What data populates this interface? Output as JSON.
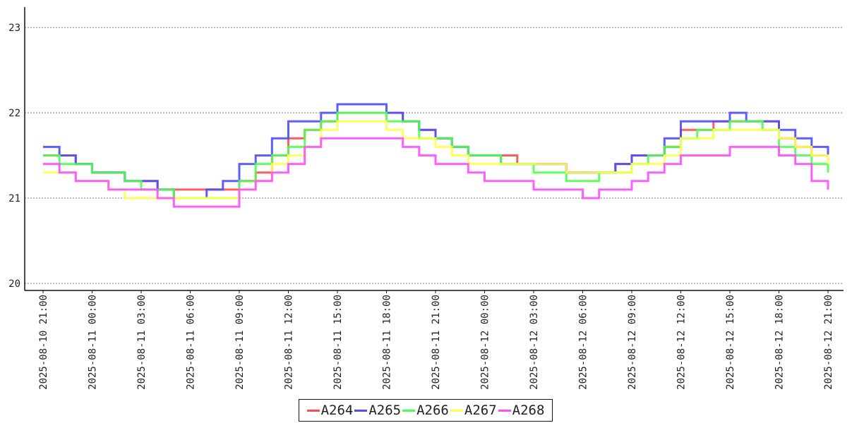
{
  "chart_data": {
    "type": "line",
    "title": "",
    "xlabel": "",
    "ylabel": "",
    "ylim": [
      19.9,
      23.25
    ],
    "yticks": [
      "20",
      "21",
      "22",
      "23"
    ],
    "ytick_values": [
      20,
      21,
      22,
      23
    ],
    "xticks": [
      "2025-08-10 21:00",
      "2025-08-11 00:00",
      "2025-08-11 03:00",
      "2025-08-11 06:00",
      "2025-08-11 09:00",
      "2025-08-11 12:00",
      "2025-08-11 15:00",
      "2025-08-11 18:00",
      "2025-08-11 21:00",
      "2025-08-12 00:00",
      "2025-08-12 03:00",
      "2025-08-12 06:00",
      "2025-08-12 09:00",
      "2025-08-12 12:00",
      "2025-08-12 15:00",
      "2025-08-12 18:00",
      "2025-08-12 21:00"
    ],
    "grid": "horizontal dotted",
    "legend_position": "bottom-center",
    "x": [
      "2025-08-10 21:00",
      "2025-08-10 22:00",
      "2025-08-10 23:00",
      "2025-08-11 00:00",
      "2025-08-11 01:00",
      "2025-08-11 02:00",
      "2025-08-11 03:00",
      "2025-08-11 04:00",
      "2025-08-11 05:00",
      "2025-08-11 06:00",
      "2025-08-11 07:00",
      "2025-08-11 08:00",
      "2025-08-11 09:00",
      "2025-08-11 10:00",
      "2025-08-11 11:00",
      "2025-08-11 12:00",
      "2025-08-11 13:00",
      "2025-08-11 14:00",
      "2025-08-11 15:00",
      "2025-08-11 16:00",
      "2025-08-11 17:00",
      "2025-08-11 18:00",
      "2025-08-11 19:00",
      "2025-08-11 20:00",
      "2025-08-11 21:00",
      "2025-08-11 22:00",
      "2025-08-11 23:00",
      "2025-08-12 00:00",
      "2025-08-12 01:00",
      "2025-08-12 02:00",
      "2025-08-12 03:00",
      "2025-08-12 04:00",
      "2025-08-12 05:00",
      "2025-08-12 06:00",
      "2025-08-12 07:00",
      "2025-08-12 08:00",
      "2025-08-12 09:00",
      "2025-08-12 10:00",
      "2025-08-12 11:00",
      "2025-08-12 12:00",
      "2025-08-12 13:00",
      "2025-08-12 14:00",
      "2025-08-12 15:00",
      "2025-08-12 16:00",
      "2025-08-12 17:00",
      "2025-08-12 18:00",
      "2025-08-12 19:00",
      "2025-08-12 20:00",
      "2025-08-12 21:00"
    ],
    "series": [
      {
        "name": "A264",
        "color": "#ff4d4d",
        "values": [
          21.5,
          21.5,
          21.4,
          21.3,
          21.3,
          21.2,
          21.2,
          21.1,
          21.1,
          21.1,
          21.1,
          21.1,
          21.2,
          21.3,
          21.5,
          21.7,
          21.8,
          21.9,
          22.0,
          22.0,
          22.0,
          22.0,
          21.9,
          21.8,
          21.7,
          21.6,
          21.5,
          21.5,
          21.5,
          21.4,
          21.4,
          21.4,
          21.3,
          21.3,
          21.3,
          21.4,
          21.5,
          21.5,
          21.6,
          21.8,
          21.8,
          21.9,
          21.9,
          21.9,
          21.9,
          21.7,
          21.6,
          21.5,
          21.5
        ]
      },
      {
        "name": "A265",
        "color": "#4d4dff",
        "values": [
          21.6,
          21.5,
          21.4,
          21.3,
          21.3,
          21.2,
          21.2,
          21.1,
          21.0,
          21.0,
          21.1,
          21.2,
          21.4,
          21.5,
          21.7,
          21.9,
          21.9,
          22.0,
          22.1,
          22.1,
          22.1,
          22.0,
          21.9,
          21.8,
          21.7,
          21.6,
          21.5,
          21.5,
          21.4,
          21.4,
          21.4,
          21.4,
          21.3,
          21.3,
          21.3,
          21.4,
          21.5,
          21.5,
          21.7,
          21.9,
          21.9,
          21.9,
          22.0,
          21.9,
          21.9,
          21.8,
          21.7,
          21.6,
          21.5
        ]
      },
      {
        "name": "A266",
        "color": "#4dff4d",
        "values": [
          21.5,
          21.4,
          21.4,
          21.3,
          21.3,
          21.2,
          21.1,
          21.1,
          21.0,
          21.0,
          21.0,
          21.0,
          21.2,
          21.4,
          21.5,
          21.6,
          21.8,
          21.9,
          22.0,
          22.0,
          22.0,
          21.9,
          21.9,
          21.7,
          21.7,
          21.6,
          21.5,
          21.5,
          21.4,
          21.4,
          21.3,
          21.3,
          21.2,
          21.2,
          21.3,
          21.3,
          21.4,
          21.5,
          21.6,
          21.7,
          21.8,
          21.8,
          21.9,
          21.9,
          21.8,
          21.6,
          21.5,
          21.4,
          21.3
        ]
      },
      {
        "name": "A267",
        "color": "#ffff4d",
        "values": [
          21.3,
          21.3,
          21.2,
          21.2,
          21.1,
          21.0,
          21.0,
          21.0,
          21.0,
          21.0,
          21.0,
          21.0,
          21.1,
          21.2,
          21.4,
          21.5,
          21.6,
          21.8,
          21.9,
          21.9,
          21.9,
          21.8,
          21.7,
          21.7,
          21.6,
          21.5,
          21.4,
          21.4,
          21.4,
          21.4,
          21.4,
          21.4,
          21.3,
          21.3,
          21.3,
          21.3,
          21.4,
          21.4,
          21.5,
          21.7,
          21.7,
          21.8,
          21.8,
          21.8,
          21.8,
          21.7,
          21.6,
          21.5,
          21.4
        ]
      },
      {
        "name": "A268",
        "color": "#ff4dff",
        "values": [
          21.4,
          21.3,
          21.2,
          21.2,
          21.1,
          21.1,
          21.1,
          21.0,
          20.9,
          20.9,
          20.9,
          20.9,
          21.1,
          21.2,
          21.3,
          21.4,
          21.6,
          21.7,
          21.7,
          21.7,
          21.7,
          21.7,
          21.6,
          21.5,
          21.4,
          21.4,
          21.3,
          21.2,
          21.2,
          21.2,
          21.1,
          21.1,
          21.1,
          21.0,
          21.1,
          21.1,
          21.2,
          21.3,
          21.4,
          21.5,
          21.5,
          21.5,
          21.6,
          21.6,
          21.6,
          21.5,
          21.4,
          21.2,
          21.1
        ]
      }
    ]
  }
}
